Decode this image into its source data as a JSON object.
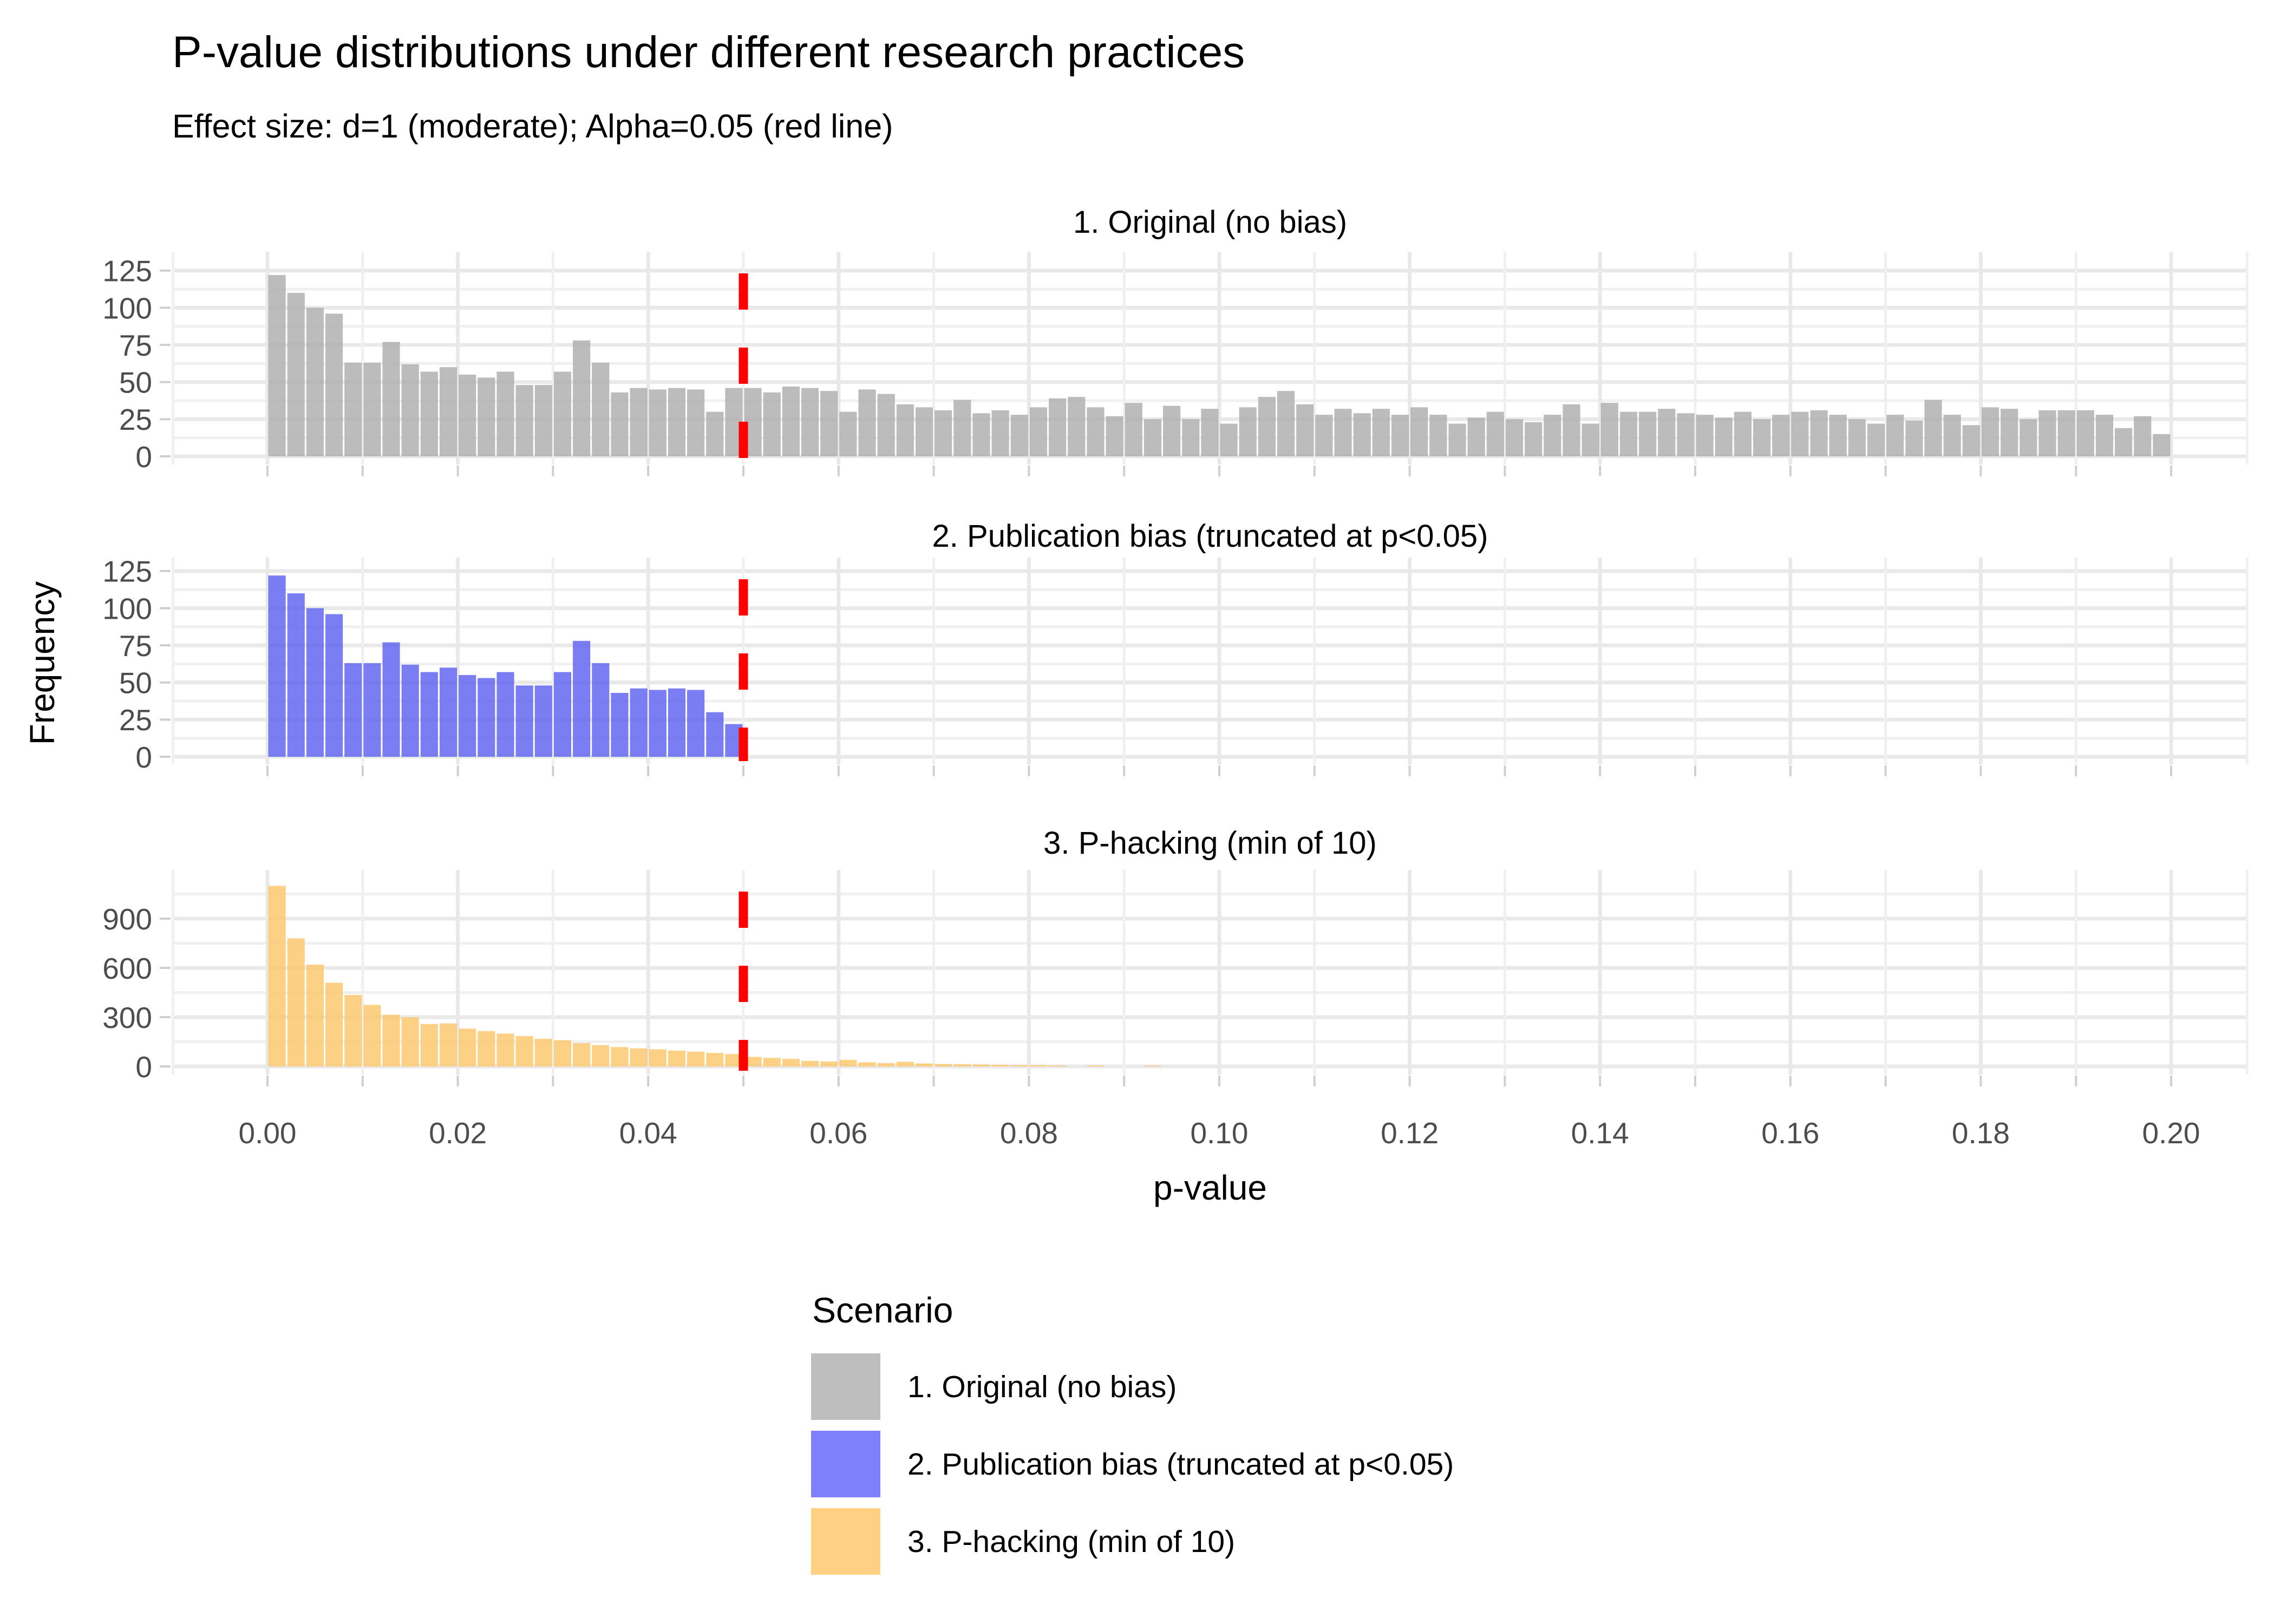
{
  "chart_data": {
    "type": "bar",
    "kind": "faceted-histogram",
    "title": "P-value distributions under different research practices",
    "subtitle": "Effect size: d=1 (moderate); Alpha=0.05 (red line)",
    "xlabel": "p-value",
    "ylabel": "Frequency",
    "background": "#ffffff",
    "grid": {
      "major_color": "#e9e9e9",
      "minor_color": "#f0f0f0"
    },
    "axis_text_color": "#4d4d4d",
    "tick_color": "#cfcfcf",
    "x_major": {
      "values": [
        0.0,
        0.02,
        0.04,
        0.06,
        0.08,
        0.1,
        0.12,
        0.14,
        0.16,
        0.18,
        0.2
      ],
      "labels": [
        "0.00",
        "0.02",
        "0.04",
        "0.06",
        "0.08",
        "0.10",
        "0.12",
        "0.14",
        "0.16",
        "0.18",
        "0.20"
      ]
    },
    "x_minor_values": [
      0.01,
      0.03,
      0.05,
      0.07,
      0.09,
      0.11,
      0.13,
      0.15,
      0.17,
      0.19
    ],
    "alpha_line": {
      "x": 0.05,
      "color": "#ff0000",
      "style": "dashed"
    },
    "bin": {
      "first_center": 0.001,
      "step": 0.002
    },
    "facets": [
      {
        "title": "1. Original (no bias)",
        "bar_fill": "rgba(173,173,173,0.82)",
        "swatch_color": "#bebebe",
        "y_major": {
          "values": [
            0,
            25,
            50,
            75,
            100,
            125
          ],
          "labels": [
            "0",
            "25",
            "50",
            "75",
            "100",
            "125"
          ]
        },
        "y_minor": [
          12.5,
          37.5,
          62.5,
          87.5,
          112.5
        ],
        "values": [
          122,
          110,
          100,
          96,
          63,
          63,
          77,
          62,
          57,
          60,
          55,
          53,
          57,
          48,
          48,
          57,
          78,
          63,
          43,
          46,
          45,
          46,
          45,
          30,
          46,
          46,
          43,
          47,
          46,
          44,
          30,
          45,
          42,
          35,
          33,
          31,
          38,
          29,
          31,
          28,
          33,
          39,
          40,
          33,
          27,
          36,
          25,
          34,
          25,
          32,
          22,
          33,
          40,
          44,
          35,
          28,
          32,
          29,
          32,
          28,
          33,
          28,
          22,
          26,
          30,
          25,
          23,
          28,
          35,
          22,
          36,
          30,
          30,
          32,
          29,
          28,
          26,
          30,
          25,
          28,
          30,
          31,
          28,
          25,
          22,
          28,
          24,
          38,
          28,
          21,
          33,
          32,
          25,
          31,
          31,
          31,
          28,
          19,
          27,
          15
        ]
      },
      {
        "title": "2. Publication bias (truncated at p<0.05)",
        "bar_fill": "rgba(94,98,239,0.82)",
        "swatch_color": "#7d80fa",
        "y_major": {
          "values": [
            0,
            25,
            50,
            75,
            100,
            125
          ],
          "labels": [
            "0",
            "25",
            "50",
            "75",
            "100",
            "125"
          ]
        },
        "y_minor": [
          12.5,
          37.5,
          62.5,
          87.5,
          112.5
        ],
        "values": [
          122,
          110,
          100,
          96,
          63,
          63,
          77,
          62,
          57,
          60,
          55,
          53,
          57,
          48,
          48,
          57,
          78,
          63,
          43,
          46,
          45,
          46,
          45,
          30,
          22
        ]
      },
      {
        "title": "3. P-hacking (min of 10)",
        "bar_fill": "rgba(251,199,106,0.82)",
        "swatch_color": "#ffd083",
        "y_major": {
          "values": [
            0,
            300,
            600,
            900
          ],
          "labels": [
            "0",
            "300",
            "600",
            "900"
          ]
        },
        "y_minor": [
          150,
          450,
          750,
          1050
        ],
        "values": [
          1100,
          780,
          620,
          510,
          435,
          375,
          315,
          300,
          258,
          262,
          230,
          215,
          200,
          185,
          168,
          160,
          142,
          130,
          118,
          110,
          104,
          96,
          90,
          82,
          75,
          58,
          52,
          46,
          34,
          30,
          40,
          25,
          20,
          28,
          18,
          15,
          13,
          12,
          10,
          8,
          8,
          6,
          0,
          6,
          0,
          0,
          5
        ]
      }
    ],
    "legend": {
      "title": "Scenario",
      "items": [
        {
          "label": "1. Original (no bias)",
          "color": "#bebebe"
        },
        {
          "label": "2. Publication bias (truncated at p<0.05)",
          "color": "#7d80fa"
        },
        {
          "label": "3. P-hacking (min of 10)",
          "color": "#ffd083"
        }
      ]
    }
  }
}
